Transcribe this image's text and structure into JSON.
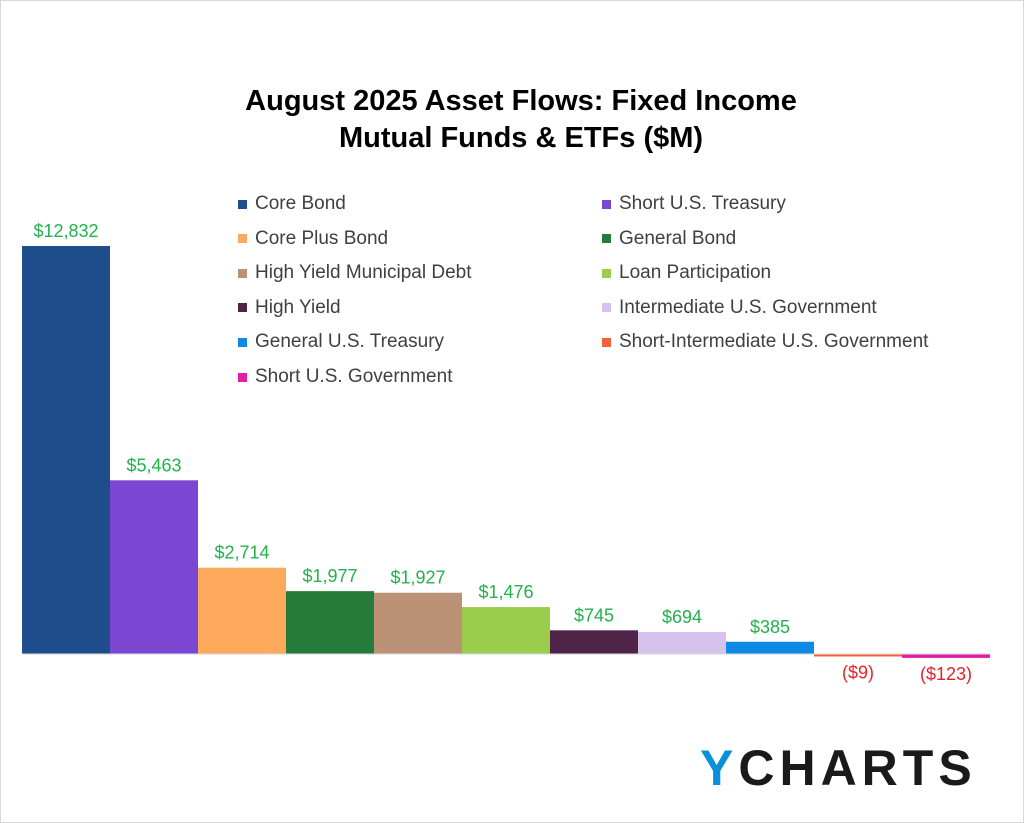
{
  "chart_data": {
    "type": "bar",
    "title": [
      "August 2025 Asset Flows: Fixed Income",
      "Mutual Funds & ETFs ($M)"
    ],
    "xlabel": "",
    "ylabel": "",
    "categories": [
      "Core Bond",
      "Short U.S. Treasury",
      "Core Plus Bond",
      "General Bond",
      "High Yield Municipal Debt",
      "Loan Participation",
      "High Yield",
      "Intermediate U.S. Government",
      "General U.S. Treasury",
      "Short-Intermediate U.S. Government",
      "Short U.S. Government"
    ],
    "values": [
      12832,
      5463,
      2714,
      1977,
      1927,
      1476,
      745,
      694,
      385,
      -9,
      -123
    ],
    "data_labels": [
      "$12,832",
      "$5,463",
      "$2,714",
      "$1,977",
      "$1,927",
      "$1,476",
      "$745",
      "$694",
      "$385",
      "($9)",
      "($123)"
    ],
    "colors": [
      "#1f4e8c",
      "#7b46d1",
      "#fda95c",
      "#267b3a",
      "#bc9276",
      "#9acd4c",
      "#4f2449",
      "#d5c3ec",
      "#0f89e6",
      "#f0633a",
      "#e01fa6"
    ],
    "positive_label_color": "#22b24c",
    "negative_label_color": "#e8212a",
    "legend_position": "top-right",
    "grid": false
  },
  "logo": {
    "y": "Y",
    "rest": "CHARTS"
  }
}
